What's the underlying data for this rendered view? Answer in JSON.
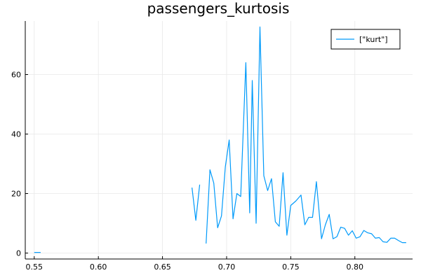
{
  "chart_data": {
    "type": "line",
    "title": "passengers_kurtosis",
    "xlabel": "",
    "ylabel": "",
    "xlim": [
      0.543,
      0.845
    ],
    "ylim": [
      -2,
      78
    ],
    "xticks": [
      0.55,
      0.6,
      0.65,
      0.7,
      0.75,
      0.8
    ],
    "xtick_labels": [
      "0.55",
      "0.60",
      "0.65",
      "0.70",
      "0.75",
      "0.80"
    ],
    "yticks": [
      0,
      20,
      40,
      60
    ],
    "ytick_labels": [
      "0",
      "20",
      "40",
      "60"
    ],
    "grid": true,
    "legend_position": "top-right",
    "series": [
      {
        "name": "[\"kurt\"]",
        "color": "#009AFA",
        "segments": [
          {
            "x": [
              0.55,
              0.555
            ],
            "y": [
              0.2,
              0.2
            ]
          },
          {
            "x": [
              0.673,
              0.676,
              0.679
            ],
            "y": [
              22,
              11,
              23
            ]
          },
          {
            "x": [
              0.684,
              0.687,
              0.69,
              0.693,
              0.696,
              0.699,
              0.702,
              0.705,
              0.708,
              0.711,
              0.715,
              0.718,
              0.72,
              0.723,
              0.726,
              0.729,
              0.732,
              0.735,
              0.738,
              0.741,
              0.744,
              0.747,
              0.75,
              0.754,
              0.758,
              0.761,
              0.764,
              0.767,
              0.77,
              0.774,
              0.777,
              0.78,
              0.783,
              0.786,
              0.789,
              0.792,
              0.795,
              0.798,
              0.801,
              0.804,
              0.807,
              0.81,
              0.813,
              0.816,
              0.819,
              0.822,
              0.825,
              0.828,
              0.831,
              0.834,
              0.837,
              0.84
            ],
            "y": [
              3.2,
              28,
              23.5,
              8.5,
              12.5,
              29,
              38,
              11.5,
              20,
              19,
              64,
              13.5,
              58,
              10,
              76,
              26,
              21,
              25,
              10.5,
              9,
              27,
              6,
              16,
              17.5,
              19.5,
              9.5,
              12,
              12,
              24,
              4.8,
              9.5,
              13,
              4.8,
              5.5,
              8.7,
              8.3,
              6,
              7.5,
              5,
              5.5,
              7.6,
              6.8,
              6.5,
              5,
              5.2,
              3.8,
              3.6,
              5,
              5,
              4.2,
              3.5,
              3.5
            ]
          }
        ]
      }
    ]
  }
}
